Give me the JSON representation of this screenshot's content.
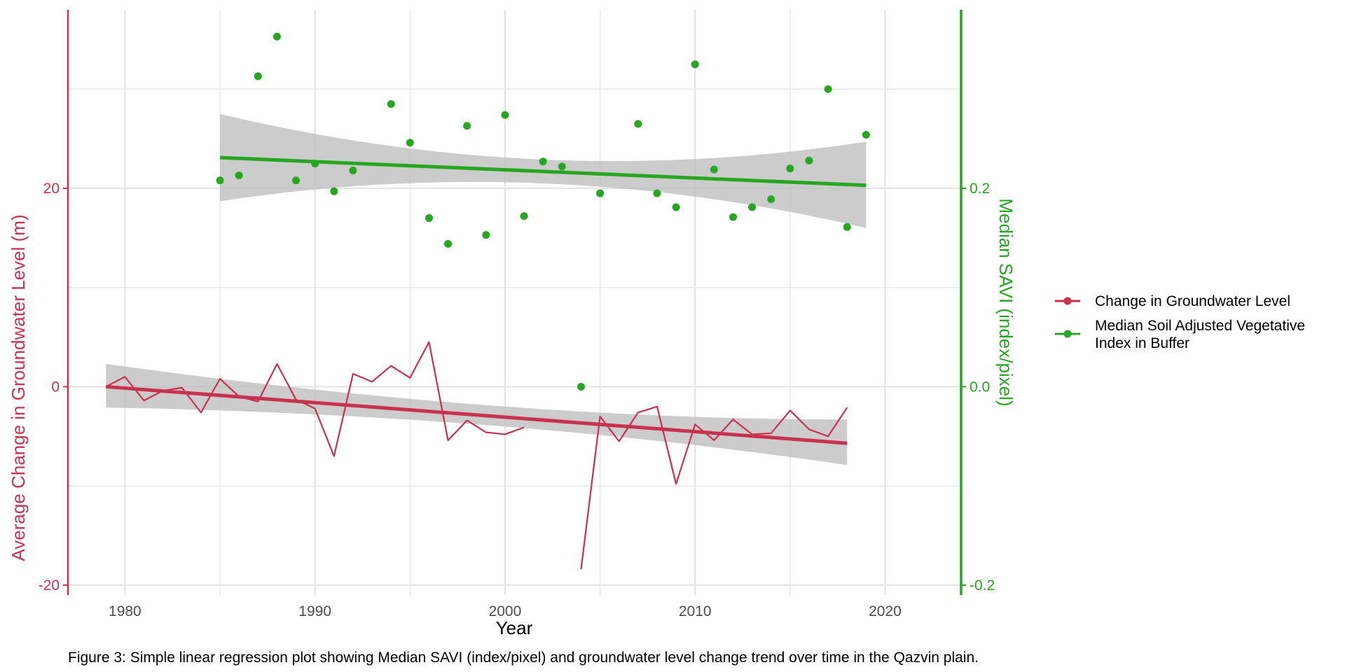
{
  "caption": "Figure 3: Simple linear regression plot showing Median SAVI (index/pixel) and groundwater level change trend over time in the Qazvin plain.",
  "colors": {
    "groundwater": "#C8324F",
    "savi": "#27A622",
    "ribbon": "#BEBEBE",
    "grid": "#E4E4E4",
    "text_dark": "#4D4D4D"
  },
  "chart_data": {
    "type": "line",
    "title": "",
    "xlabel": "Year",
    "ylabel": "Average Change in Groundwater Level (m)",
    "y2label": "Median SAVI (index/pixel)",
    "xlim": [
      1977,
      2024
    ],
    "ylim": [
      -21,
      38
    ],
    "y2lim": [
      -0.21,
      0.38
    ],
    "x_ticks": [
      1980,
      1990,
      2000,
      2010,
      2020
    ],
    "y_ticks": [
      -20,
      0,
      20
    ],
    "y2_ticks": [
      -0.2,
      0.0,
      0.2
    ],
    "y2_tick_labels": [
      "-0.2",
      "0.0",
      "0.2"
    ],
    "grid": true,
    "legend_position": "right",
    "series": [
      {
        "name": "Change in Groundwater Level",
        "type": "line",
        "axis": "left",
        "segments": [
          {
            "x": [
              1979,
              1980,
              1981,
              1982,
              1983,
              1984,
              1985,
              1986,
              1987,
              1988,
              1989,
              1990,
              1991,
              1992,
              1993,
              1994,
              1995,
              1996,
              1997,
              1998,
              1999,
              2000,
              2001
            ],
            "y": [
              0,
              1,
              -1.4,
              -0.4,
              -0.1,
              -2.6,
              0.8,
              -1.0,
              -1.5,
              2.3,
              -1.3,
              -2.2,
              -7.0,
              1.3,
              0.5,
              2.1,
              0.9,
              4.5,
              -5.4,
              -3.4,
              -4.6,
              -4.8,
              -4.1
            ]
          },
          {
            "x": [
              2004,
              2005,
              2006,
              2007,
              2008,
              2009,
              2010,
              2011,
              2012,
              2013,
              2014,
              2015,
              2016,
              2017,
              2018
            ],
            "y": [
              -18.4,
              -3.0,
              -5.5,
              -2.6,
              -2.0,
              -9.8,
              -3.8,
              -5.4,
              -3.3,
              -4.8,
              -4.7,
              -2.4,
              -4.3,
              -5.0,
              -2.1
            ]
          }
        ],
        "fit": {
          "x": [
            1979,
            2018
          ],
          "y": [
            0.0,
            -5.7
          ],
          "ribbon_lower": [
            -2.1,
            -7.9
          ],
          "ribbon_upper": [
            2.3,
            -3.3
          ],
          "ribbon_mid_x": 2000,
          "ribbon_mid_lower": [
            -3.9
          ],
          "ribbon_mid_upper": [
            -1.9
          ]
        }
      },
      {
        "name": "Median Soil Adjusted Vegetative Index in Buffer",
        "type": "scatter",
        "axis": "right",
        "x": [
          1985,
          1986,
          1987,
          1988,
          1989,
          1990,
          1991,
          1992,
          1994,
          1995,
          1996,
          1997,
          1998,
          1999,
          2000,
          2001,
          2002,
          2003,
          2004,
          2005,
          2007,
          2008,
          2009,
          2010,
          2011,
          2012,
          2013,
          2014,
          2015,
          2016,
          2017,
          2018,
          2019
        ],
        "y": [
          0.208,
          0.213,
          0.313,
          0.353,
          0.208,
          0.225,
          0.197,
          0.218,
          0.285,
          0.246,
          0.17,
          0.144,
          0.263,
          0.153,
          0.274,
          0.172,
          0.227,
          0.222,
          0.0,
          0.195,
          0.265,
          0.195,
          0.181,
          0.325,
          0.219,
          0.171,
          0.181,
          0.189,
          0.22,
          0.228,
          0.3,
          0.161,
          0.254
        ],
        "fit": {
          "x": [
            1985,
            2019
          ],
          "y": [
            0.231,
            0.203
          ],
          "ribbon_lower": [
            0.187,
            0.16
          ],
          "ribbon_upper": [
            0.275,
            0.247
          ],
          "ribbon_mid_x": 2002,
          "ribbon_mid_lower": [
            0.205
          ],
          "ribbon_mid_upper": [
            0.229
          ]
        }
      }
    ]
  }
}
